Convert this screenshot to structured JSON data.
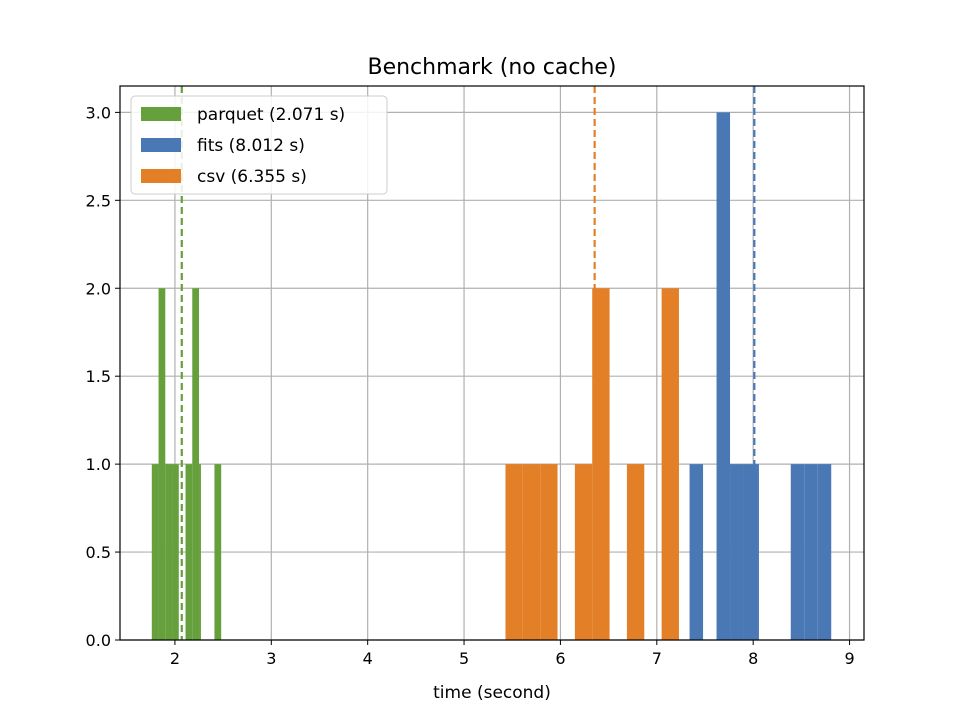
{
  "chart_data": {
    "type": "bar",
    "title": "Benchmark (no cache)",
    "xlabel": "time (second)",
    "ylabel": "",
    "xlim": [
      1.43,
      9.15
    ],
    "ylim": [
      0,
      3.15
    ],
    "xticks": [
      2,
      3,
      4,
      5,
      6,
      7,
      8,
      9
    ],
    "yticks": [
      0.0,
      0.5,
      1.0,
      1.5,
      2.0,
      2.5,
      3.0
    ],
    "xtick_labels": [
      "2",
      "3",
      "4",
      "5",
      "6",
      "7",
      "8",
      "9"
    ],
    "ytick_labels": [
      "0.0",
      "0.5",
      "1.0",
      "1.5",
      "2.0",
      "2.5",
      "3.0"
    ],
    "grid": true,
    "legend_position": "top-left",
    "series": [
      {
        "name": "csv (6.355 s)",
        "color": "#e37f26",
        "mean": 6.355,
        "bins": [
          {
            "x0": 5.43,
            "x1": 5.61,
            "count": 1
          },
          {
            "x0": 5.61,
            "x1": 5.79,
            "count": 1
          },
          {
            "x0": 5.79,
            "x1": 5.97,
            "count": 1
          },
          {
            "x0": 6.15,
            "x1": 6.33,
            "count": 1
          },
          {
            "x0": 6.33,
            "x1": 6.51,
            "count": 2
          },
          {
            "x0": 6.69,
            "x1": 6.87,
            "count": 1
          },
          {
            "x0": 7.05,
            "x1": 7.23,
            "count": 2
          }
        ]
      },
      {
        "name": "fits (8.012 s)",
        "color": "#4a78b4",
        "mean": 8.012,
        "bins": [
          {
            "x0": 7.34,
            "x1": 7.48,
            "count": 1
          },
          {
            "x0": 7.62,
            "x1": 7.76,
            "count": 3
          },
          {
            "x0": 7.76,
            "x1": 7.9,
            "count": 1
          },
          {
            "x0": 7.9,
            "x1": 8.04,
            "count": 1
          },
          {
            "x0": 8.04,
            "x1": 8.06,
            "count": 1
          },
          {
            "x0": 8.39,
            "x1": 8.53,
            "count": 1
          },
          {
            "x0": 8.53,
            "x1": 8.67,
            "count": 1
          },
          {
            "x0": 8.67,
            "x1": 8.81,
            "count": 1
          }
        ]
      },
      {
        "name": "parquet (2.071 s)",
        "color": "#65a03d",
        "mean": 2.071,
        "bins": [
          {
            "x0": 1.76,
            "x1": 1.83,
            "count": 1
          },
          {
            "x0": 1.83,
            "x1": 1.9,
            "count": 2
          },
          {
            "x0": 1.9,
            "x1": 1.97,
            "count": 1
          },
          {
            "x0": 1.97,
            "x1": 2.04,
            "count": 1
          },
          {
            "x0": 2.11,
            "x1": 2.18,
            "count": 1
          },
          {
            "x0": 2.18,
            "x1": 2.25,
            "count": 2
          },
          {
            "x0": 2.25,
            "x1": 2.27,
            "count": 1
          },
          {
            "x0": 2.41,
            "x1": 2.48,
            "count": 1
          }
        ]
      }
    ],
    "legend_order": [
      "parquet (2.071 s)",
      "fits (8.012 s)",
      "csv (6.355 s)"
    ]
  }
}
